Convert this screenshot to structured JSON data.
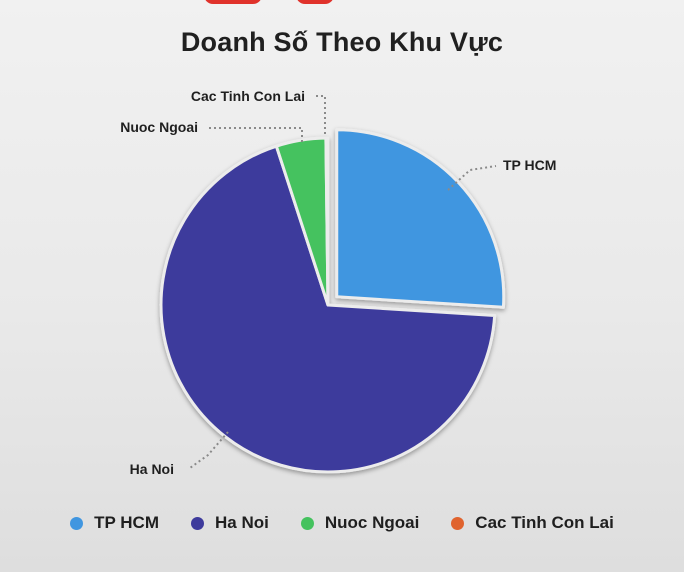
{
  "chart_data": {
    "type": "pie",
    "title": "Doanh Số Theo Khu Vực",
    "start_angle_deg": 90,
    "exploded": "TP HCM",
    "legend_position": "bottom",
    "slices": [
      {
        "label": "TP HCM",
        "value": 26,
        "color": "#4096e0"
      },
      {
        "label": "Ha Noi",
        "value": 69,
        "color": "#3e3b9c"
      },
      {
        "label": "Nuoc Ngoai",
        "value": 4.8,
        "color": "#44c25e"
      },
      {
        "label": "Cac Tinh Con Lai",
        "value": 0.2,
        "color": "#e0632e"
      }
    ]
  }
}
